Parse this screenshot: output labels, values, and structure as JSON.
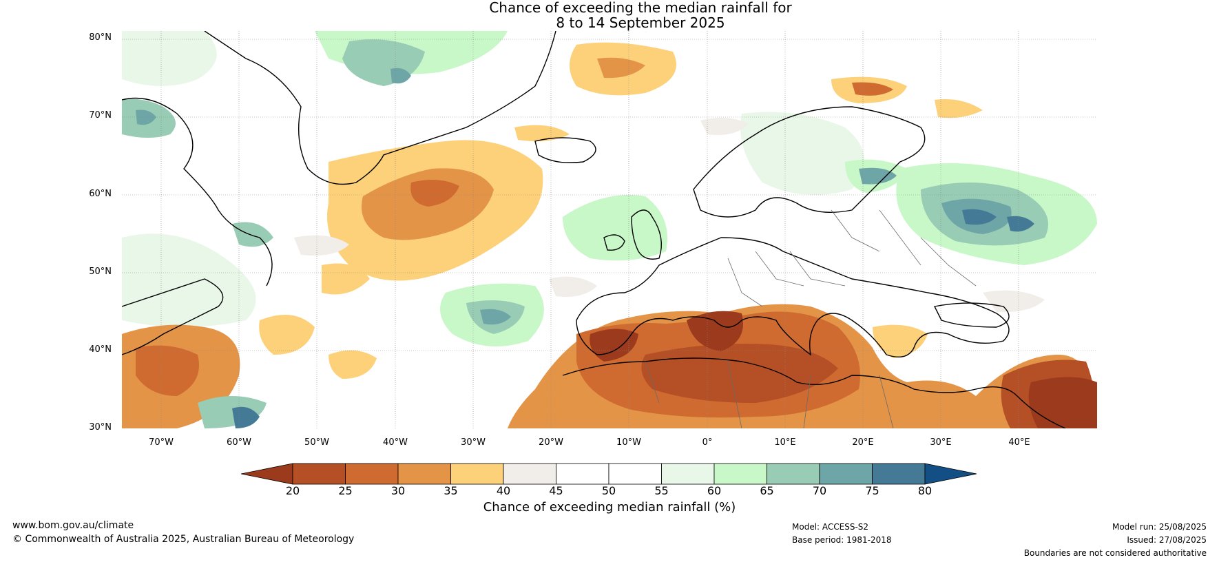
{
  "title_line1": "Chance of exceeding the median rainfall for",
  "title_line2": "8 to 14 September 2025",
  "lat_labels": [
    "80°N",
    "70°N",
    "60°N",
    "50°N",
    "40°N",
    "30°N"
  ],
  "lon_labels": [
    "70°W",
    "60°W",
    "50°W",
    "40°W",
    "30°W",
    "20°W",
    "10°W",
    "0°",
    "10°E",
    "20°E",
    "30°E",
    "40°E"
  ],
  "colorbar": {
    "label": "Chance of exceeding median rainfall (%)",
    "ticks": [
      "20",
      "25",
      "30",
      "35",
      "40",
      "45",
      "50",
      "55",
      "60",
      "65",
      "70",
      "75",
      "80"
    ],
    "colors": [
      "#9c3a1e",
      "#b54f26",
      "#cf6b30",
      "#e39447",
      "#fdd07a",
      "#f1ede9",
      "#ffffff",
      "#ffffff",
      "#e9f7e9",
      "#c8f7c8",
      "#99ccb4",
      "#6ea5a6",
      "#457a96",
      "#134f84"
    ]
  },
  "footer": {
    "website": "www.bom.gov.au/climate",
    "copyright": "© Commonwealth of Australia 2025, Australian Bureau of Meteorology",
    "model": "Model: ACCESS-S2",
    "base_period": "Base period: 1981-2018",
    "model_run": "Model run: 25/08/2025",
    "issued": "Issued: 27/08/2025",
    "disclaimer": "Boundaries are not considered authoritative"
  }
}
